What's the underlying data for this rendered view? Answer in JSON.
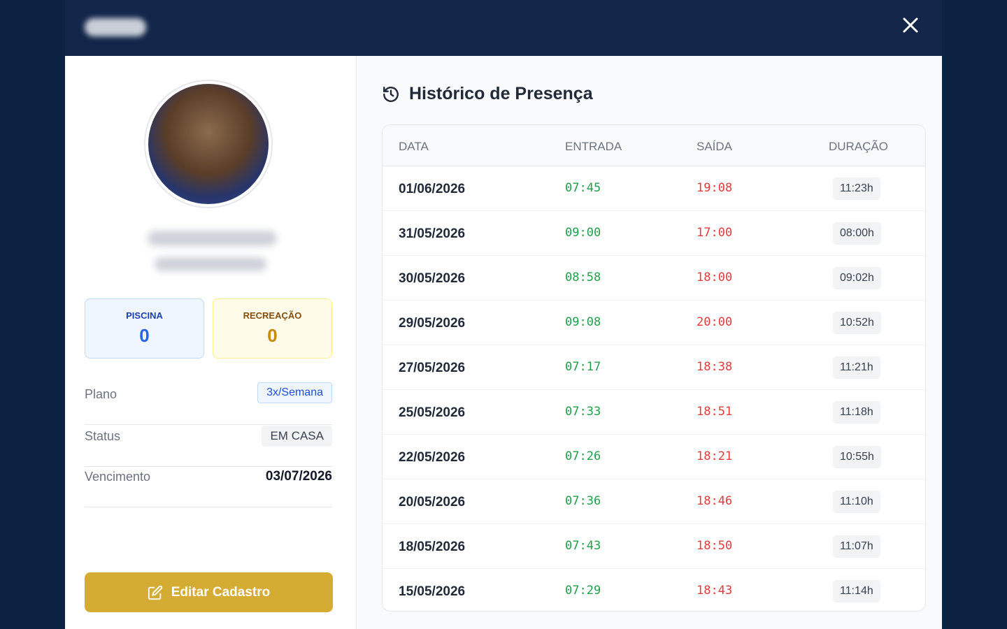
{
  "profile": {
    "stats": [
      {
        "label": "PISCINA",
        "value": 0
      },
      {
        "label": "RECREAÇÃO",
        "value": 0
      }
    ],
    "details": [
      {
        "label": "Plano",
        "value": "3x/Semana"
      },
      {
        "label": "Status",
        "value": "EM CASA"
      },
      {
        "label": "Vencimento",
        "value": "03/07/2026"
      }
    ],
    "edit_button": "Editar Cadastro"
  },
  "history": {
    "title": "Histórico de Presença",
    "columns": [
      "DATA",
      "ENTRADA",
      "SAÍDA",
      "DURAÇÃO"
    ],
    "rows": [
      [
        "01/06/2026",
        "07:45",
        "19:08",
        "11:23h"
      ],
      [
        "31/05/2026",
        "09:00",
        "17:00",
        "08:00h"
      ],
      [
        "30/05/2026",
        "08:58",
        "18:00",
        "09:02h"
      ],
      [
        "29/05/2026",
        "09:08",
        "20:00",
        "10:52h"
      ],
      [
        "27/05/2026",
        "07:17",
        "18:38",
        "11:21h"
      ],
      [
        "25/05/2026",
        "07:33",
        "18:51",
        "11:18h"
      ],
      [
        "22/05/2026",
        "07:26",
        "18:21",
        "10:55h"
      ],
      [
        "20/05/2026",
        "07:36",
        "18:46",
        "11:10h"
      ],
      [
        "18/05/2026",
        "07:43",
        "18:50",
        "11:07h"
      ],
      [
        "15/05/2026",
        "07:29",
        "18:43",
        "11:14h"
      ]
    ]
  }
}
